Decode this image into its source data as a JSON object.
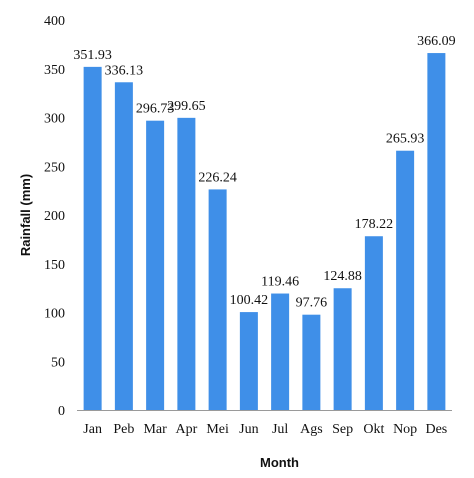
{
  "chart_data": {
    "type": "bar",
    "title": "",
    "xlabel": "Month",
    "ylabel": "Rainfall (mm)",
    "ylim": [
      0,
      400
    ],
    "yticks": [
      0,
      50,
      100,
      150,
      200,
      250,
      300,
      350,
      400
    ],
    "grid": false,
    "categories": [
      "Jan",
      "Peb",
      "Mar",
      "Apr",
      "Mei",
      "Jun",
      "Jul",
      "Ags",
      "Sep",
      "Okt",
      "Nop",
      "Des"
    ],
    "values": [
      351.93,
      336.13,
      296.73,
      299.65,
      226.24,
      100.42,
      119.46,
      97.76,
      124.88,
      178.22,
      265.93,
      366.09
    ],
    "data_labels": [
      "351.93",
      "336.13",
      "296.73",
      "299.65",
      "226.24",
      "100.42",
      "119.46",
      "97.76",
      "124.88",
      "178.22",
      "265.93",
      "366.09"
    ],
    "bar_color": "#3f8fe8"
  }
}
